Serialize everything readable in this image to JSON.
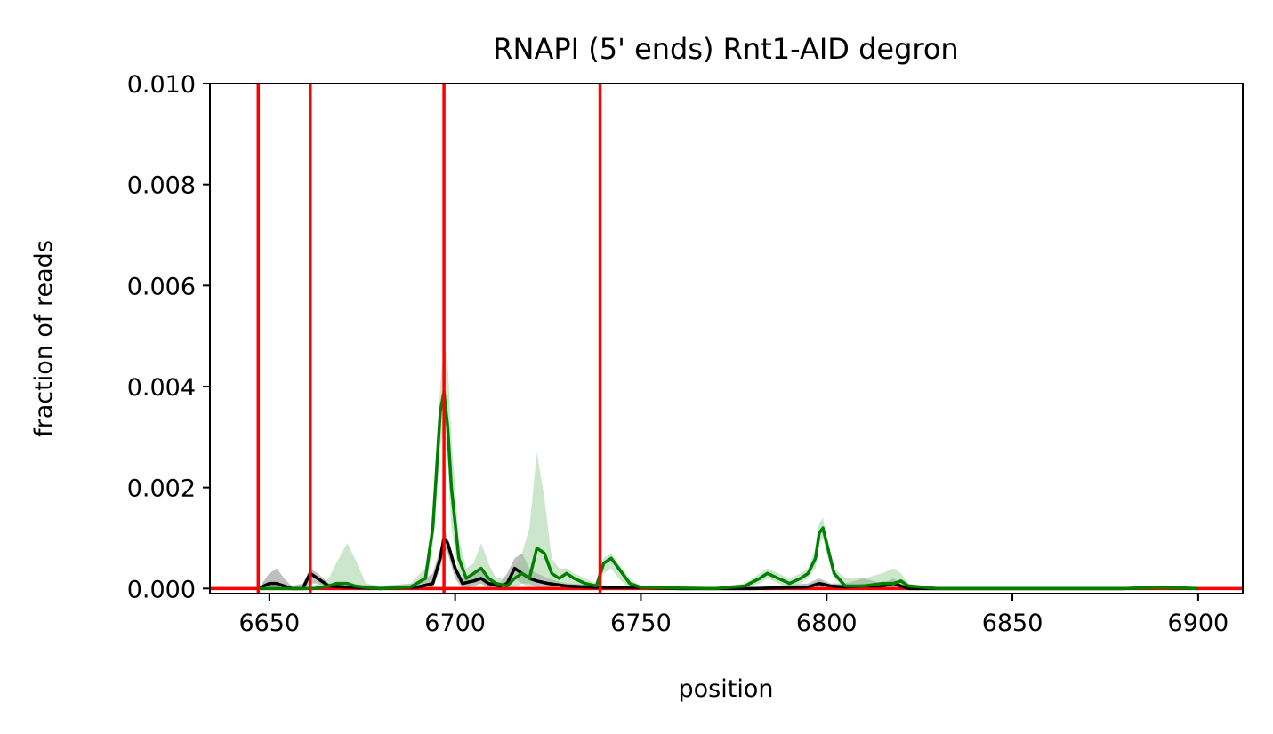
{
  "chart_data": {
    "type": "line",
    "title": "RNAPI (5' ends) Rnt1-AID degron",
    "xlabel": "position",
    "ylabel": "fraction of reads",
    "xlim": [
      6634,
      6912
    ],
    "ylim": [
      -0.0001,
      0.01
    ],
    "x_ticks": [
      6650,
      6700,
      6750,
      6800,
      6850,
      6900
    ],
    "x_tick_labels": [
      "6650",
      "6700",
      "6750",
      "6800",
      "6850",
      "6900"
    ],
    "y_ticks": [
      0.0,
      0.002,
      0.004,
      0.006,
      0.008,
      0.01
    ],
    "y_tick_labels": [
      "0.000",
      "0.002",
      "0.004",
      "0.006",
      "0.008",
      "0.010"
    ],
    "grid": false,
    "reference_lines": {
      "color": "#ff0000",
      "vertical_x": [
        6647,
        6661,
        6697,
        6739
      ],
      "horizontal_y": 0.0
    },
    "series": [
      {
        "color": "#000000",
        "band_color": "#808080",
        "x": [
          6647,
          6650,
          6652,
          6654,
          6656,
          6659,
          6661,
          6663,
          6666,
          6670,
          6680,
          6690,
          6694,
          6696,
          6697,
          6698,
          6700,
          6702,
          6705,
          6707,
          6709,
          6712,
          6714,
          6716,
          6718,
          6720,
          6722,
          6725,
          6730,
          6735,
          6740,
          6745,
          6750,
          6760,
          6780,
          6795,
          6798,
          6801,
          6805,
          6810,
          6815,
          6818,
          6820,
          6822,
          6830,
          6850,
          6880,
          6890,
          6900
        ],
        "y": [
          0.0,
          0.0001,
          0.0001,
          5e-05,
          0.0,
          0.0,
          0.0003,
          0.0002,
          5e-05,
          3e-05,
          0.0,
          3e-05,
          0.0001,
          0.0006,
          0.001,
          0.0009,
          0.0004,
          0.0001,
          0.00015,
          0.0002,
          0.0001,
          5e-05,
          0.0001,
          0.0004,
          0.0003,
          0.0002,
          0.00015,
          0.0001,
          5e-05,
          3e-05,
          2e-05,
          2e-05,
          2e-05,
          0.0,
          0.0,
          3e-05,
          0.0001,
          5e-05,
          3e-05,
          5e-05,
          5e-05,
          0.0001,
          5e-05,
          0.0,
          0.0,
          0.0,
          0.0,
          2e-05,
          0.0
        ],
        "upper": [
          0.0,
          0.0003,
          0.0004,
          0.0002,
          5e-05,
          0.0001,
          0.0004,
          0.0003,
          0.0001,
          0.0001,
          5e-05,
          0.0001,
          0.0003,
          0.0008,
          0.0012,
          0.001,
          0.0005,
          0.0002,
          0.0003,
          0.0004,
          0.0002,
          0.0001,
          0.0003,
          0.0006,
          0.0007,
          0.0004,
          0.0003,
          0.0002,
          0.0001,
          8e-05,
          5e-05,
          5e-05,
          5e-05,
          2e-05,
          2e-05,
          0.0001,
          0.0002,
          0.0001,
          0.0001,
          0.0002,
          0.0001,
          0.0002,
          0.0001,
          2e-05,
          2e-05,
          0.0,
          0.0,
          5e-05,
          0.0
        ],
        "lower": [
          0.0,
          0.0,
          0.0,
          0.0,
          0.0,
          0.0,
          0.0001,
          0.0001,
          0.0,
          0.0,
          0.0,
          0.0,
          0.0,
          0.0004,
          0.0008,
          0.0007,
          0.0002,
          0.0,
          5e-05,
          0.0001,
          0.0,
          0.0,
          0.0,
          0.0002,
          0.0001,
          0.0001,
          0.0,
          0.0,
          0.0,
          0.0,
          0.0,
          0.0,
          0.0,
          0.0,
          0.0,
          0.0,
          0.0,
          0.0,
          0.0,
          0.0,
          0.0,
          0.0,
          0.0,
          0.0,
          0.0,
          0.0,
          0.0,
          0.0,
          0.0
        ]
      },
      {
        "color": "#008000",
        "band_color": "#9acd9a",
        "x": [
          6647,
          6655,
          6662,
          6666,
          6668,
          6671,
          6673,
          6676,
          6680,
          6688,
          6692,
          6694,
          6696,
          6697,
          6698,
          6699,
          6701,
          6703,
          6705,
          6707,
          6709,
          6711,
          6714,
          6716,
          6718,
          6720,
          6722,
          6724,
          6726,
          6728,
          6730,
          6732,
          6735,
          6738,
          6740,
          6742,
          6744,
          6747,
          6750,
          6770,
          6778,
          6782,
          6784,
          6787,
          6790,
          6793,
          6795,
          6797,
          6798,
          6799,
          6800,
          6802,
          6805,
          6810,
          6815,
          6818,
          6820,
          6822,
          6830,
          6850,
          6880,
          6890,
          6900
        ],
        "y": [
          0.0,
          0.0,
          0.0,
          5e-05,
          0.0001,
          0.0001,
          5e-05,
          2e-05,
          0.0,
          3e-05,
          0.0002,
          0.0012,
          0.0035,
          0.0039,
          0.0032,
          0.002,
          0.0006,
          0.0002,
          0.0003,
          0.0004,
          0.0002,
          0.0001,
          5e-05,
          0.0002,
          0.0003,
          0.0002,
          0.0008,
          0.0007,
          0.0003,
          0.0002,
          0.0003,
          0.0002,
          0.0001,
          5e-05,
          0.0005,
          0.0006,
          0.0004,
          0.0001,
          2e-05,
          0.0,
          5e-05,
          0.0002,
          0.0003,
          0.0002,
          0.0001,
          0.0002,
          0.0003,
          0.0006,
          0.0011,
          0.0012,
          0.0009,
          0.0003,
          5e-05,
          5e-05,
          0.0001,
          0.0001,
          0.00015,
          5e-05,
          0.0,
          0.0,
          0.0,
          2e-05,
          0.0
        ],
        "upper": [
          0.0,
          2e-05,
          5e-05,
          0.0002,
          0.0005,
          0.0009,
          0.0006,
          0.0001,
          5e-05,
          0.0001,
          0.0004,
          0.0015,
          0.004,
          0.0049,
          0.0045,
          0.003,
          0.001,
          0.0004,
          0.0005,
          0.0009,
          0.0005,
          0.0002,
          0.0002,
          0.0004,
          0.0007,
          0.0012,
          0.0027,
          0.0018,
          0.0006,
          0.0004,
          0.0004,
          0.0003,
          0.0002,
          0.0001,
          0.0006,
          0.0007,
          0.0005,
          0.0002,
          5e-05,
          2e-05,
          0.0001,
          0.0003,
          0.0004,
          0.0003,
          0.0002,
          0.0003,
          0.0004,
          0.0008,
          0.0013,
          0.0014,
          0.001,
          0.0004,
          0.0002,
          0.0002,
          0.0003,
          0.0004,
          0.0003,
          0.0001,
          2e-05,
          0.0,
          0.0,
          5e-05,
          0.0
        ],
        "lower": [
          0.0,
          0.0,
          0.0,
          0.0,
          0.0,
          0.0,
          0.0,
          0.0,
          0.0,
          0.0,
          0.0,
          0.0008,
          0.0028,
          0.0032,
          0.0025,
          0.0012,
          0.0003,
          0.0,
          0.0001,
          0.0001,
          0.0,
          0.0,
          0.0,
          0.0,
          0.0001,
          0.0,
          0.0002,
          0.0002,
          0.0001,
          0.0,
          0.0001,
          0.0,
          0.0,
          0.0,
          0.0003,
          0.0004,
          0.0002,
          0.0,
          0.0,
          0.0,
          0.0,
          0.0001,
          0.0002,
          0.0001,
          0.0,
          0.0001,
          0.0002,
          0.0004,
          0.0009,
          0.001,
          0.0007,
          0.0002,
          0.0,
          0.0,
          0.0,
          0.0,
          0.0,
          0.0,
          0.0,
          0.0,
          0.0,
          0.0,
          0.0
        ]
      }
    ]
  }
}
